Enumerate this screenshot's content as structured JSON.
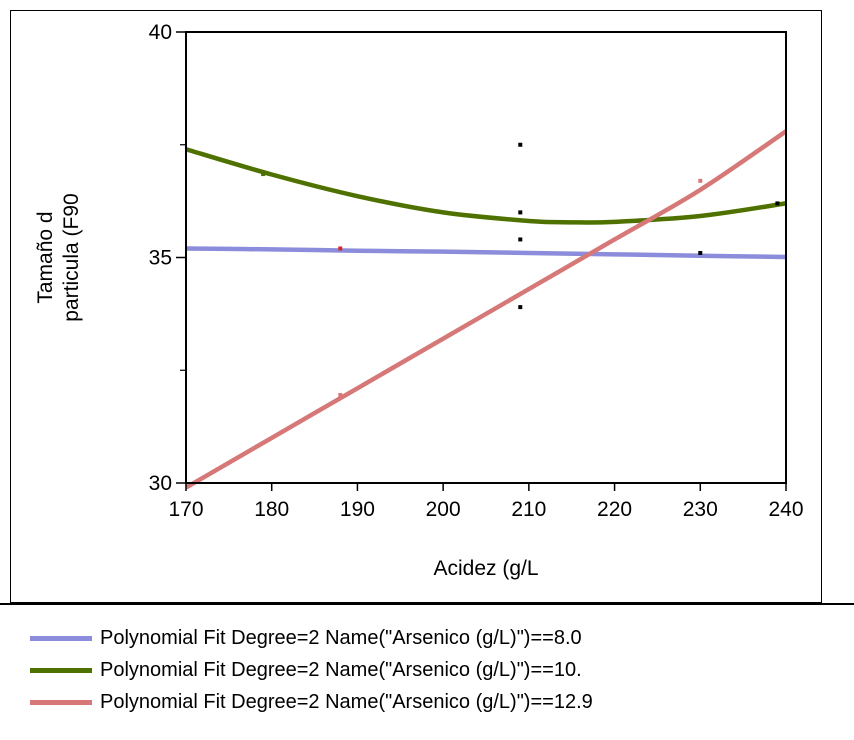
{
  "chart_data": {
    "type": "line",
    "xlabel": "Acidez (g/L",
    "ylabel": [
      "Tamaño d",
      "particula (F90"
    ],
    "xlim": [
      170,
      240
    ],
    "ylim": [
      30,
      40
    ],
    "x_ticks": [
      170,
      180,
      190,
      200,
      210,
      220,
      230,
      240
    ],
    "y_ticks": [
      30,
      35,
      40
    ],
    "y_minor_ticks": [
      32.5,
      37.5
    ],
    "series": [
      {
        "name": "Polynomial Fit Degree=2 Name(\"Arsenico (g/L)\")==8.0",
        "color": "#8c8cdc",
        "x": [
          170,
          180,
          190,
          200,
          210,
          220,
          230,
          240
        ],
        "y": [
          35.2,
          35.18,
          35.15,
          35.13,
          35.1,
          35.07,
          35.04,
          35.01
        ]
      },
      {
        "name": "Polynomial Fit Degree=2 Name(\"Arsenico (g/L)\")==10.",
        "color": "#4f7100",
        "x": [
          170,
          180,
          190,
          200,
          210,
          215,
          220,
          230,
          240
        ],
        "y": [
          37.4,
          36.84,
          36.36,
          36.0,
          35.81,
          35.78,
          35.79,
          35.92,
          36.2
        ]
      },
      {
        "name": "Polynomial Fit Degree=2 Name(\"Arsenico (g/L)\")==12.9",
        "color": "#d67878",
        "x": [
          170,
          180,
          190,
          200,
          210,
          220,
          230,
          240
        ],
        "y": [
          29.9,
          31.0,
          32.1,
          33.2,
          34.3,
          35.4,
          36.5,
          37.8
        ]
      }
    ],
    "points": [
      {
        "x": 179,
        "y": 36.85,
        "color": "#4f7100"
      },
      {
        "x": 188,
        "y": 35.2,
        "color": "#d62828"
      },
      {
        "x": 188,
        "y": 31.95,
        "color": "#d67878"
      },
      {
        "x": 209,
        "y": 37.5,
        "color": "#000000"
      },
      {
        "x": 209,
        "y": 36.0,
        "color": "#000000"
      },
      {
        "x": 209,
        "y": 35.4,
        "color": "#000000"
      },
      {
        "x": 209,
        "y": 33.9,
        "color": "#000000"
      },
      {
        "x": 230,
        "y": 36.7,
        "color": "#d67878"
      },
      {
        "x": 230,
        "y": 35.1,
        "color": "#000000"
      },
      {
        "x": 239,
        "y": 36.2,
        "color": "#000000"
      }
    ],
    "legend_position": "bottom",
    "grid": false
  },
  "legend": {
    "items": [
      {
        "label": "Polynomial Fit Degree=2 Name(\"Arsenico (g/L)\")==8.0",
        "color": "#8c8cdc"
      },
      {
        "label": "Polynomial Fit Degree=2 Name(\"Arsenico (g/L)\")==10.",
        "color": "#4f7100"
      },
      {
        "label": "Polynomial Fit Degree=2 Name(\"Arsenico (g/L)\")==12.9",
        "color": "#d67878"
      }
    ]
  }
}
